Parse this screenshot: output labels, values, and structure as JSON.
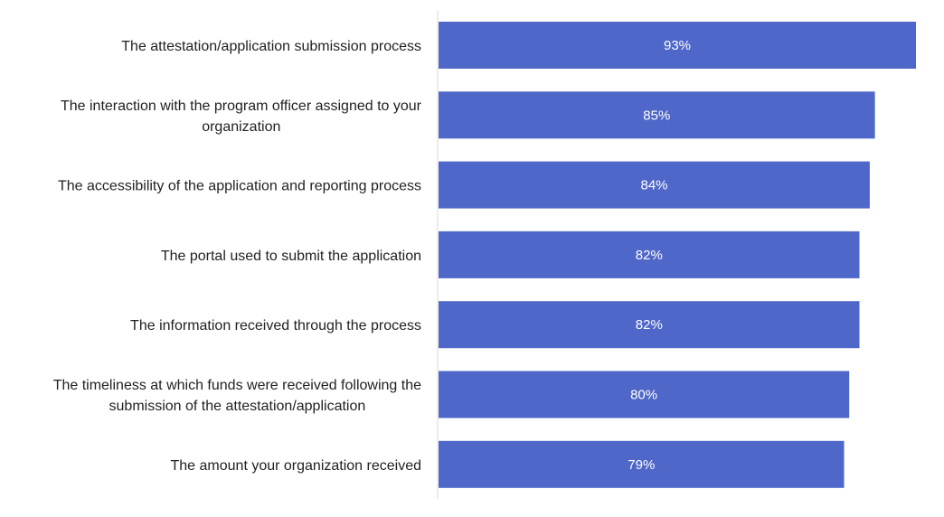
{
  "chart_data": {
    "type": "bar",
    "orientation": "horizontal",
    "categories": [
      [
        "The attestation/application submission process"
      ],
      [
        "The interaction with the program officer assigned to your",
        "organization"
      ],
      [
        "The accessibility of the application and reporting process"
      ],
      [
        "The portal used to submit the application"
      ],
      [
        "The information received through the process"
      ],
      [
        "The timeliness at which funds were received following the",
        "submission of the attestation/application"
      ],
      [
        "The amount your organization received"
      ]
    ],
    "values": [
      93,
      85,
      84,
      82,
      82,
      80,
      79
    ],
    "value_labels": [
      "93%",
      "85%",
      "84%",
      "82%",
      "82%",
      "80%",
      "79%"
    ],
    "bar_color": "#4f67c8",
    "axis_color": "#d9d9d9",
    "grid": false,
    "legend": "none"
  }
}
